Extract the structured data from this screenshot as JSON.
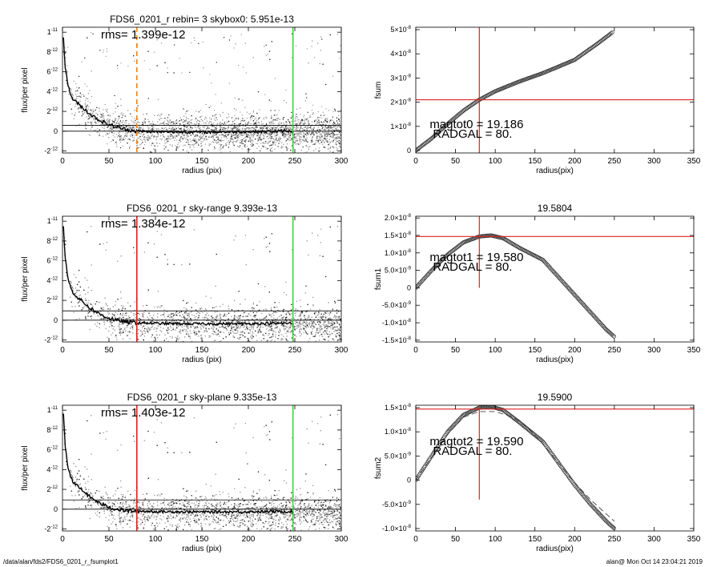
{
  "footer": {
    "path": "/data/alan/fds2/FDS6_0201_r_fsumplot1",
    "stamp": "alan@  Mon Oct 14 23:04:21 2019"
  },
  "chart_data": [
    {
      "type": "scatter",
      "id": "profile-skybox",
      "title": "FDS6_0201_r rebin= 3    skybox0:  5.951e-13",
      "annotation": "rms= 1.399e-12",
      "xlabel": "radius (pix)",
      "ylabel": "flux/per pixel",
      "xlim": [
        0,
        300
      ],
      "ylim": [
        -2.2e-12,
        1.05e-11
      ],
      "xticks": [
        "0",
        "50",
        "100",
        "150",
        "200",
        "250",
        "300"
      ],
      "yticks": [
        {
          "v": -2e-12,
          "m": "-2",
          "e": "-12"
        },
        {
          "v": 0,
          "m": "0",
          "e": ""
        },
        {
          "v": 2e-12,
          "m": "2",
          "e": "-12"
        },
        {
          "v": 4e-12,
          "m": "4",
          "e": "-12"
        },
        {
          "v": 6e-12,
          "m": "6",
          "e": "-12"
        },
        {
          "v": 8e-12,
          "m": "8",
          "e": "-12"
        },
        {
          "v": 1e-11,
          "m": "1",
          "e": "-11"
        }
      ],
      "sky_level": 5.951e-13,
      "vlines": [
        {
          "x": 80,
          "color": "#e8871e",
          "dashed": true
        },
        {
          "x": 248,
          "color": "#33dd33",
          "dashed": false
        }
      ],
      "profile": {
        "x": [
          1,
          3,
          6,
          10,
          15,
          20,
          25,
          30,
          40,
          50,
          60,
          70,
          80,
          100,
          150,
          200,
          248
        ],
        "y": [
          9.5e-12,
          6.5e-12,
          4.6e-12,
          3.4e-12,
          2.9e-12,
          2.5e-12,
          2.1e-12,
          1.7e-12,
          1.1e-12,
          6.5e-13,
          3.5e-13,
          1.5e-13,
          0,
          -6e-14,
          -1e-13,
          -5e-14,
          0
        ]
      }
    },
    {
      "type": "scatter",
      "id": "fsum0",
      "title": "",
      "annotation_lines": [
        "magtot0 =  19.186",
        "RADGAL =     80."
      ],
      "xlabel": "radius(pix)",
      "ylabel": "fsum",
      "xlim": [
        0,
        350
      ],
      "ylim": [
        -1e-09,
        5.1e-08
      ],
      "xticks": [
        "0",
        "50",
        "100",
        "150",
        "200",
        "250",
        "300",
        "350"
      ],
      "yticks": [
        {
          "v": 0,
          "m": "0",
          "e": ""
        },
        {
          "v": 1e-08,
          "m": "1×10",
          "e": "-8"
        },
        {
          "v": 2e-08,
          "m": "2×10",
          "e": "-8"
        },
        {
          "v": 3e-08,
          "m": "3×10",
          "e": "-8"
        },
        {
          "v": 4e-08,
          "m": "4×10",
          "e": "-8"
        },
        {
          "v": 5e-08,
          "m": "5×10",
          "e": "-8"
        }
      ],
      "cross": {
        "x": 80,
        "y": 2.1e-08
      },
      "curve": {
        "x": [
          0,
          20,
          40,
          60,
          80,
          100,
          130,
          160,
          200,
          230,
          248
        ],
        "y": [
          0,
          5e-09,
          1.1e-08,
          1.65e-08,
          2.1e-08,
          2.45e-08,
          2.85e-08,
          3.2e-08,
          3.75e-08,
          4.45e-08,
          4.9e-08
        ]
      }
    },
    {
      "type": "scatter",
      "id": "profile-skyrange",
      "title": "FDS6_0201_r sky-range  9.393e-13",
      "annotation": "rms= 1.384e-12",
      "xlabel": "radius (pix)",
      "ylabel": "flux/per pixel",
      "xlim": [
        0,
        300
      ],
      "ylim": [
        -2.2e-12,
        1.05e-11
      ],
      "xticks": [
        "0",
        "50",
        "100",
        "150",
        "200",
        "250",
        "300"
      ],
      "yticks": [
        {
          "v": -2e-12,
          "m": "-2",
          "e": "-12"
        },
        {
          "v": 0,
          "m": "0",
          "e": ""
        },
        {
          "v": 2e-12,
          "m": "2",
          "e": "-12"
        },
        {
          "v": 4e-12,
          "m": "4",
          "e": "-12"
        },
        {
          "v": 6e-12,
          "m": "6",
          "e": "-12"
        },
        {
          "v": 8e-12,
          "m": "8",
          "e": "-12"
        },
        {
          "v": 1e-11,
          "m": "1",
          "e": "-11"
        }
      ],
      "sky_level": 9.393e-13,
      "vlines": [
        {
          "x": 80,
          "color": "#dd2222",
          "dashed": false
        },
        {
          "x": 248,
          "color": "#33dd33",
          "dashed": false
        }
      ],
      "profile": {
        "x": [
          1,
          3,
          6,
          10,
          15,
          20,
          25,
          30,
          40,
          50,
          60,
          70,
          80,
          100,
          150,
          200,
          248
        ],
        "y": [
          9.5e-12,
          6.2e-12,
          4.2e-12,
          3e-12,
          2.4e-12,
          2e-12,
          1.6e-12,
          1.2e-12,
          6e-13,
          2e-13,
          -5e-14,
          -2e-13,
          -2.5e-13,
          -3.3e-13,
          -3.8e-13,
          -3.5e-13,
          -3.2e-13
        ]
      }
    },
    {
      "type": "scatter",
      "id": "fsum1",
      "title": "19.5804",
      "annotation_lines": [
        "magtot1 =  19.580",
        "RADGAL =     80."
      ],
      "xlabel": "radius(pix)",
      "ylabel": "fsum1",
      "xlim": [
        0,
        350
      ],
      "ylim": [
        -1.55e-08,
        2.05e-08
      ],
      "xticks": [
        "0",
        "50",
        "100",
        "150",
        "200",
        "250",
        "300",
        "350"
      ],
      "yticks": [
        {
          "v": -1.5e-08,
          "m": "-1.5×10",
          "e": "-8"
        },
        {
          "v": -1e-08,
          "m": "-1.0×10",
          "e": "-8"
        },
        {
          "v": -5e-09,
          "m": "-5.0×10",
          "e": "-9"
        },
        {
          "v": 0,
          "m": "0",
          "e": ""
        },
        {
          "v": 5e-09,
          "m": "5.0×10",
          "e": "-9"
        },
        {
          "v": 1e-08,
          "m": "1.0×10",
          "e": "-8"
        },
        {
          "v": 1.5e-08,
          "m": "1.5×10",
          "e": "-8"
        },
        {
          "v": 2e-08,
          "m": "2.0×10",
          "e": "-8"
        }
      ],
      "cross": {
        "x": 80,
        "y": 1.47e-08
      },
      "cross_vline_span": [
        0,
        2.05e-08
      ],
      "curve": {
        "x": [
          0,
          20,
          40,
          60,
          80,
          95,
          110,
          130,
          160,
          180,
          200,
          220,
          240,
          250
        ],
        "y": [
          0,
          5e-09,
          9.5e-09,
          1.3e-08,
          1.47e-08,
          1.5e-08,
          1.42e-08,
          1.15e-08,
          8e-09,
          3e-09,
          -2e-09,
          -7e-09,
          -1.2e-08,
          -1.4e-08
        ]
      }
    },
    {
      "type": "scatter",
      "id": "profile-skyplane",
      "title": "FDS6_0201_r sky-plane  9.335e-13",
      "annotation": "rms= 1.403e-12",
      "xlabel": "radius (pix)",
      "ylabel": "flux/per pixel",
      "xlim": [
        0,
        300
      ],
      "ylim": [
        -2.2e-12,
        1.05e-11
      ],
      "xticks": [
        "0",
        "50",
        "100",
        "150",
        "200",
        "250",
        "300"
      ],
      "yticks": [
        {
          "v": -2e-12,
          "m": "-2",
          "e": "-12"
        },
        {
          "v": 0,
          "m": "0",
          "e": ""
        },
        {
          "v": 2e-12,
          "m": "2",
          "e": "-12"
        },
        {
          "v": 4e-12,
          "m": "4",
          "e": "-12"
        },
        {
          "v": 6e-12,
          "m": "6",
          "e": "-12"
        },
        {
          "v": 8e-12,
          "m": "8",
          "e": "-12"
        },
        {
          "v": 1e-11,
          "m": "1",
          "e": "-11"
        }
      ],
      "sky_level": 9.335e-13,
      "vlines": [
        {
          "x": 80,
          "color": "#dd2222",
          "dashed": false
        },
        {
          "x": 248,
          "color": "#33dd33",
          "dashed": false
        }
      ],
      "profile": {
        "x": [
          1,
          3,
          6,
          10,
          15,
          20,
          25,
          30,
          40,
          50,
          60,
          70,
          80,
          100,
          150,
          200,
          248
        ],
        "y": [
          9.5e-12,
          6.2e-12,
          4.2e-12,
          3e-12,
          2.4e-12,
          2e-12,
          1.6e-12,
          1.2e-12,
          6e-13,
          2e-13,
          -5e-14,
          -1.5e-13,
          -2e-13,
          -2.5e-13,
          -2.8e-13,
          -2.6e-13,
          -2.3e-13
        ]
      }
    },
    {
      "type": "scatter",
      "id": "fsum2",
      "title": "19.5900",
      "annotation_lines": [
        "magtot2 =  19.590",
        "RADGAL =     80."
      ],
      "xlabel": "radius(pix)",
      "ylabel": "fsum2",
      "xlim": [
        0,
        350
      ],
      "ylim": [
        -1.05e-08,
        1.55e-08
      ],
      "xticks": [
        "0",
        "50",
        "100",
        "150",
        "200",
        "250",
        "300",
        "350"
      ],
      "yticks": [
        {
          "v": -1e-08,
          "m": "-1.0×10",
          "e": "-8"
        },
        {
          "v": -5e-09,
          "m": "-5.0×10",
          "e": "-9"
        },
        {
          "v": 0,
          "m": "0",
          "e": ""
        },
        {
          "v": 5e-09,
          "m": "5.0×10",
          "e": "-9"
        },
        {
          "v": 1e-08,
          "m": "1.0×10",
          "e": "-8"
        },
        {
          "v": 1.5e-08,
          "m": "1.5×10",
          "e": "-8"
        }
      ],
      "cross": {
        "x": 80,
        "y": 1.47e-08
      },
      "cross_vline_span": [
        -4e-09,
        1.55e-08
      ],
      "curve": {
        "x": [
          0,
          20,
          40,
          60,
          80,
          95,
          110,
          130,
          160,
          180,
          200,
          220,
          240,
          250
        ],
        "y": [
          0,
          5e-09,
          1e-08,
          1.35e-08,
          1.5e-08,
          1.52e-08,
          1.45e-08,
          1.2e-08,
          8e-09,
          3.5e-09,
          -1e-09,
          -5e-09,
          -8.5e-09,
          -1e-08
        ]
      },
      "dashed_curve": {
        "x": [
          0,
          20,
          40,
          60,
          80,
          100,
          120,
          140,
          160,
          180,
          200,
          220,
          240,
          250
        ],
        "y": [
          0,
          4.8e-09,
          9.5e-09,
          1.3e-08,
          1.42e-08,
          1.42e-08,
          1.32e-08,
          1.1e-08,
          7.5e-09,
          3.5e-09,
          -5e-10,
          -4e-09,
          -7e-09,
          -8.5e-09
        ]
      }
    }
  ]
}
